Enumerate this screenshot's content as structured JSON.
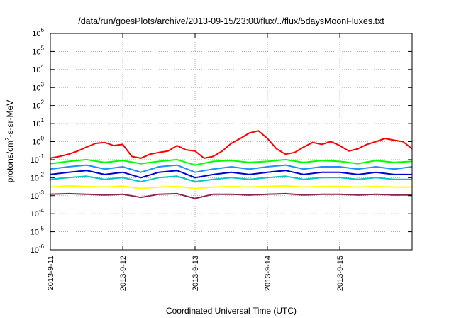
{
  "chart_data": {
    "type": "line",
    "title": "/data/run/goesPlots/archive/2013-09-15/23:00/flux/../flux/5daysMoonFluxes.txt",
    "xlabel": "Coordinated Universal Time (UTC)",
    "ylabel_parts": [
      "protons/cm",
      "2",
      "-s-sr-MeV"
    ],
    "y_scale": "log",
    "ylim": [
      1e-06,
      1000000.0
    ],
    "y_ticks": [
      {
        "base": "10",
        "exp": "-6",
        "value": 1e-06
      },
      {
        "base": "10",
        "exp": "-5",
        "value": 1e-05
      },
      {
        "base": "10",
        "exp": "-4",
        "value": 0.0001
      },
      {
        "base": "10",
        "exp": "-3",
        "value": 0.001
      },
      {
        "base": "10",
        "exp": "-2",
        "value": 0.01
      },
      {
        "base": "10",
        "exp": "-1",
        "value": 0.1
      },
      {
        "base": "10",
        "exp": "0",
        "value": 1
      },
      {
        "base": "10",
        "exp": "1",
        "value": 10
      },
      {
        "base": "10",
        "exp": "2",
        "value": 100
      },
      {
        "base": "10",
        "exp": "3",
        "value": 1000
      },
      {
        "base": "10",
        "exp": "4",
        "value": 10000
      },
      {
        "base": "10",
        "exp": "5",
        "value": 100000
      },
      {
        "base": "10",
        "exp": "6",
        "value": 1000000
      }
    ],
    "xlim": [
      "2013-09-11",
      "2013-09-16"
    ],
    "x_ticks": [
      {
        "label": "2013-9-11",
        "value": "2013-09-11"
      },
      {
        "label": "2013-9-12",
        "value": "2013-09-12"
      },
      {
        "label": "2013-9-13",
        "value": "2013-09-13"
      },
      {
        "label": "2013-9-14",
        "value": "2013-09-14"
      },
      {
        "label": "2013-9-15",
        "value": "2013-09-15"
      }
    ],
    "grid": true,
    "legend": "none",
    "series": [
      {
        "color": "#ff0000",
        "x": [
          "2013-09-11 00:00",
          "2013-09-11 03:00",
          "2013-09-11 06:00",
          "2013-09-11 09:00",
          "2013-09-11 12:00",
          "2013-09-11 15:00",
          "2013-09-11 18:00",
          "2013-09-11 21:00",
          "2013-09-12 00:00",
          "2013-09-12 03:00",
          "2013-09-12 06:00",
          "2013-09-12 09:00",
          "2013-09-12 12:00",
          "2013-09-12 15:00",
          "2013-09-12 18:00",
          "2013-09-12 21:00",
          "2013-09-13 00:00",
          "2013-09-13 03:00",
          "2013-09-13 06:00",
          "2013-09-13 09:00",
          "2013-09-13 12:00",
          "2013-09-13 15:00",
          "2013-09-13 18:00",
          "2013-09-13 21:00",
          "2013-09-14 00:00",
          "2013-09-14 03:00",
          "2013-09-14 06:00",
          "2013-09-14 09:00",
          "2013-09-14 12:00",
          "2013-09-14 15:00",
          "2013-09-14 18:00",
          "2013-09-14 21:00",
          "2013-09-15 00:00",
          "2013-09-15 03:00",
          "2013-09-15 06:00",
          "2013-09-15 09:00",
          "2013-09-15 12:00",
          "2013-09-15 15:00",
          "2013-09-15 18:00",
          "2013-09-15 21:00",
          "2013-09-16 00:00"
        ],
        "y": [
          0.12,
          0.15,
          0.2,
          0.3,
          0.5,
          0.8,
          0.9,
          0.6,
          0.7,
          0.15,
          0.12,
          0.2,
          0.25,
          0.3,
          0.6,
          0.35,
          0.3,
          0.12,
          0.15,
          0.3,
          0.8,
          1.5,
          3.0,
          4.0,
          1.5,
          0.4,
          0.2,
          0.25,
          0.5,
          0.9,
          0.7,
          1.0,
          0.6,
          0.3,
          0.4,
          0.7,
          1.0,
          1.5,
          1.2,
          1.0,
          0.4
        ]
      },
      {
        "color": "#00ff00",
        "x": [
          "2013-09-11 00:00",
          "2013-09-11 06:00",
          "2013-09-11 12:00",
          "2013-09-11 18:00",
          "2013-09-12 00:00",
          "2013-09-12 06:00",
          "2013-09-12 12:00",
          "2013-09-12 18:00",
          "2013-09-13 00:00",
          "2013-09-13 06:00",
          "2013-09-13 12:00",
          "2013-09-13 18:00",
          "2013-09-14 00:00",
          "2013-09-14 06:00",
          "2013-09-14 12:00",
          "2013-09-14 18:00",
          "2013-09-15 00:00",
          "2013-09-15 06:00",
          "2013-09-15 12:00",
          "2013-09-15 18:00",
          "2013-09-16 00:00"
        ],
        "y": [
          0.06,
          0.08,
          0.1,
          0.07,
          0.09,
          0.06,
          0.08,
          0.1,
          0.05,
          0.08,
          0.09,
          0.07,
          0.08,
          0.1,
          0.07,
          0.09,
          0.08,
          0.06,
          0.09,
          0.07,
          0.08
        ]
      },
      {
        "color": "#1e90ff",
        "x": [
          "2013-09-11 00:00",
          "2013-09-11 06:00",
          "2013-09-11 12:00",
          "2013-09-11 18:00",
          "2013-09-12 00:00",
          "2013-09-12 06:00",
          "2013-09-12 12:00",
          "2013-09-12 18:00",
          "2013-09-13 00:00",
          "2013-09-13 06:00",
          "2013-09-13 12:00",
          "2013-09-13 18:00",
          "2013-09-14 00:00",
          "2013-09-14 06:00",
          "2013-09-14 12:00",
          "2013-09-14 18:00",
          "2013-09-15 00:00",
          "2013-09-15 06:00",
          "2013-09-15 12:00",
          "2013-09-15 18:00",
          "2013-09-16 00:00"
        ],
        "y": [
          0.03,
          0.04,
          0.05,
          0.03,
          0.04,
          0.02,
          0.04,
          0.05,
          0.02,
          0.03,
          0.04,
          0.03,
          0.04,
          0.05,
          0.03,
          0.04,
          0.04,
          0.03,
          0.04,
          0.03,
          0.04
        ]
      },
      {
        "color": "#0000cd",
        "x": [
          "2013-09-11 00:00",
          "2013-09-11 06:00",
          "2013-09-11 12:00",
          "2013-09-11 18:00",
          "2013-09-12 00:00",
          "2013-09-12 06:00",
          "2013-09-12 12:00",
          "2013-09-12 18:00",
          "2013-09-13 00:00",
          "2013-09-13 06:00",
          "2013-09-13 12:00",
          "2013-09-13 18:00",
          "2013-09-14 00:00",
          "2013-09-14 06:00",
          "2013-09-14 12:00",
          "2013-09-14 18:00",
          "2013-09-15 00:00",
          "2013-09-15 06:00",
          "2013-09-15 12:00",
          "2013-09-15 18:00",
          "2013-09-16 00:00"
        ],
        "y": [
          0.015,
          0.02,
          0.025,
          0.015,
          0.02,
          0.01,
          0.02,
          0.025,
          0.01,
          0.015,
          0.02,
          0.015,
          0.02,
          0.025,
          0.015,
          0.02,
          0.02,
          0.015,
          0.02,
          0.015,
          0.015
        ]
      },
      {
        "color": "#00c8c8",
        "x": [
          "2013-09-11 00:00",
          "2013-09-11 06:00",
          "2013-09-11 12:00",
          "2013-09-11 18:00",
          "2013-09-12 00:00",
          "2013-09-12 06:00",
          "2013-09-12 12:00",
          "2013-09-12 18:00",
          "2013-09-13 00:00",
          "2013-09-13 06:00",
          "2013-09-13 12:00",
          "2013-09-13 18:00",
          "2013-09-14 00:00",
          "2013-09-14 06:00",
          "2013-09-14 12:00",
          "2013-09-14 18:00",
          "2013-09-15 00:00",
          "2013-09-15 06:00",
          "2013-09-15 12:00",
          "2013-09-15 18:00",
          "2013-09-16 00:00"
        ],
        "y": [
          0.008,
          0.01,
          0.012,
          0.008,
          0.01,
          0.006,
          0.01,
          0.012,
          0.006,
          0.008,
          0.01,
          0.008,
          0.01,
          0.012,
          0.008,
          0.01,
          0.01,
          0.008,
          0.01,
          0.008,
          0.008
        ]
      },
      {
        "color": "#ffff00",
        "x": [
          "2013-09-11 00:00",
          "2013-09-11 06:00",
          "2013-09-11 12:00",
          "2013-09-11 18:00",
          "2013-09-12 00:00",
          "2013-09-12 06:00",
          "2013-09-12 12:00",
          "2013-09-12 18:00",
          "2013-09-13 00:00",
          "2013-09-13 06:00",
          "2013-09-13 12:00",
          "2013-09-13 18:00",
          "2013-09-14 00:00",
          "2013-09-14 06:00",
          "2013-09-14 12:00",
          "2013-09-14 18:00",
          "2013-09-15 00:00",
          "2013-09-15 06:00",
          "2013-09-15 12:00",
          "2013-09-15 18:00",
          "2013-09-16 00:00"
        ],
        "y": [
          0.003,
          0.0035,
          0.0032,
          0.003,
          0.0034,
          0.0025,
          0.003,
          0.0033,
          0.0025,
          0.003,
          0.0032,
          0.003,
          0.0033,
          0.0035,
          0.003,
          0.0032,
          0.0033,
          0.003,
          0.0032,
          0.003,
          0.003
        ]
      },
      {
        "color": "#8b2252",
        "x": [
          "2013-09-11 00:00",
          "2013-09-11 06:00",
          "2013-09-11 12:00",
          "2013-09-11 18:00",
          "2013-09-12 00:00",
          "2013-09-12 06:00",
          "2013-09-12 12:00",
          "2013-09-12 18:00",
          "2013-09-13 00:00",
          "2013-09-13 06:00",
          "2013-09-13 12:00",
          "2013-09-13 18:00",
          "2013-09-14 00:00",
          "2013-09-14 06:00",
          "2013-09-14 12:00",
          "2013-09-14 18:00",
          "2013-09-15 00:00",
          "2013-09-15 06:00",
          "2013-09-15 12:00",
          "2013-09-15 18:00",
          "2013-09-16 00:00"
        ],
        "y": [
          0.0012,
          0.0013,
          0.0012,
          0.0011,
          0.0012,
          0.0008,
          0.0012,
          0.0013,
          0.0007,
          0.0012,
          0.0012,
          0.0011,
          0.0012,
          0.0013,
          0.0011,
          0.0012,
          0.0012,
          0.0011,
          0.0012,
          0.0011,
          0.0011
        ]
      }
    ]
  }
}
